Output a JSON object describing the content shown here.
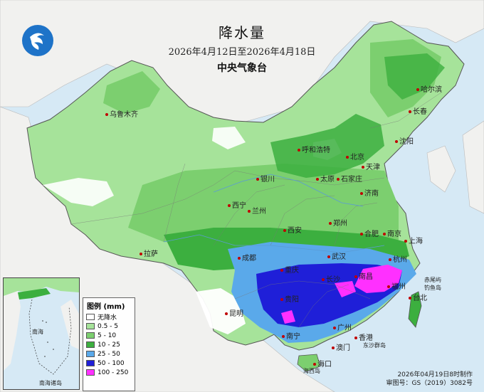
{
  "title": "降水量",
  "date_range": "2026年4月12日至2026年4月18日",
  "organization": "中央气象台",
  "legend": {
    "title": "图例 (mm)",
    "items": [
      {
        "label": "无降水",
        "color": "#ffffff"
      },
      {
        "label": "0.5 - 5",
        "color": "#a6e39a"
      },
      {
        "label": "5 - 10",
        "color": "#7ccf6f"
      },
      {
        "label": "10 - 25",
        "color": "#3caf3f"
      },
      {
        "label": "25 - 50",
        "color": "#5aa9ea"
      },
      {
        "label": "50 - 100",
        "color": "#1f1fd8"
      },
      {
        "label": "100 - 250",
        "color": "#ff30ff"
      }
    ]
  },
  "cities": {
    "wulumuqi": "乌鲁木齐",
    "haerbin": "哈尔滨",
    "changchun": "长春",
    "shenyang": "沈阳",
    "huhehaote": "呼和浩特",
    "beijing": "北京",
    "tianjin": "天津",
    "yinchuan": "银川",
    "taiyuan": "太原",
    "shijiazhuang": "石家庄",
    "jinan": "济南",
    "xining": "西宁",
    "lanzhou": "兰州",
    "zhengzhou": "郑州",
    "xian": "西安",
    "hefei": "合肥",
    "nanjing": "南京",
    "shanghai": "上海",
    "lasa": "拉萨",
    "chengdu": "成都",
    "wuhan": "武汉",
    "hangzhou": "杭州",
    "chongqing": "重庆",
    "changsha": "长沙",
    "nanchang": "南昌",
    "fuzhou": "福州",
    "guiyang": "贵阳",
    "taibei": "台北",
    "kunming": "昆明",
    "nanning": "南宁",
    "guangzhou": "广州",
    "xianggang": "香港",
    "aomen": "澳门",
    "haikou": "海口",
    "dongsha": "东沙群岛",
    "chiwei": "赤尾屿",
    "diaoyu": "钓鱼岛",
    "haixi": "海西岛"
  },
  "inset": {
    "label_nanhai": "南海",
    "label_islands": "南海诸岛"
  },
  "footer": {
    "made": "2026年04月19日8时制作",
    "review": "审图号：GS（2019）3082号"
  },
  "colors": {
    "sea": "#d6e9f5",
    "land_outside": "#f4f4f4",
    "dry": "#ffffff"
  }
}
